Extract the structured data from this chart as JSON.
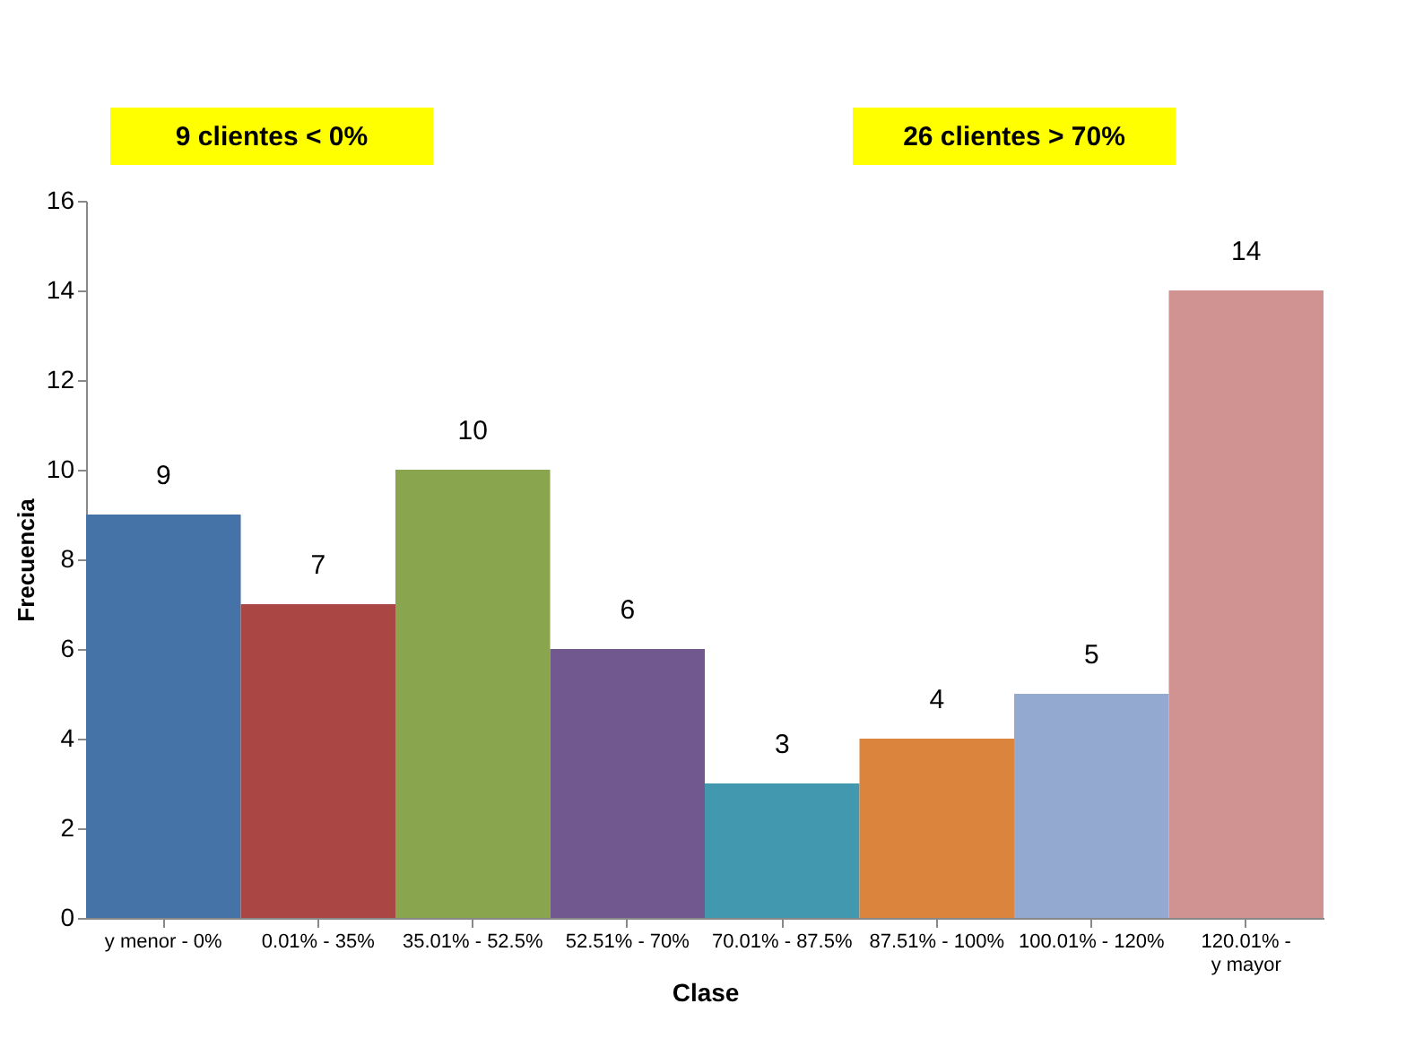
{
  "chart_data": {
    "type": "bar",
    "xlabel": "Clase",
    "ylabel": "Frecuencia",
    "categories": [
      "y menor - 0%",
      "0.01% - 35%",
      "35.01% - 52.5%",
      "52.51% - 70%",
      "70.01% - 87.5%",
      "87.51% - 100%",
      "100.01% - 120%",
      "120.01% - y mayor"
    ],
    "values": [
      9,
      7,
      10,
      6,
      3,
      4,
      5,
      14
    ],
    "colors": [
      "#4572a7",
      "#aa4643",
      "#89a54e",
      "#71588f",
      "#4198af",
      "#db843d",
      "#93a9cf",
      "#d19392"
    ],
    "ylim": [
      0,
      16
    ],
    "yticks": [
      0,
      2,
      4,
      6,
      8,
      10,
      12,
      14,
      16
    ],
    "grid": false,
    "data_labels": true,
    "annotations": [
      "9 clientes  < 0%",
      "26 clientes > 70%"
    ]
  }
}
